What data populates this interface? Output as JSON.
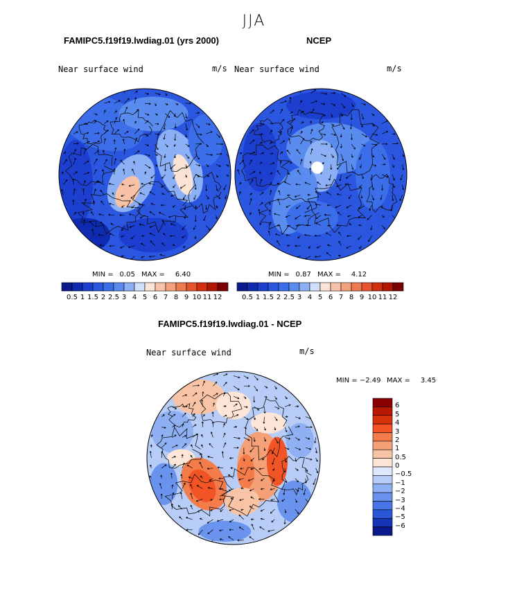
{
  "season": "JJA",
  "panels": [
    {
      "id": "model",
      "title": "FAMIPC5.f19f19.lwdiag.01 (yrs 2000)",
      "field": "Near surface wind",
      "units": "m/s",
      "min_label": "MIN =",
      "min_value": "0.05",
      "max_label": "MAX =",
      "max_value": "6.40"
    },
    {
      "id": "obs",
      "title": "NCEP",
      "field": "Near surface wind",
      "units": "m/s",
      "min_label": "MIN =",
      "min_value": "0.87",
      "max_label": "MAX =",
      "max_value": "4.12"
    },
    {
      "id": "diff",
      "title": "FAMIPC5.f19f19.lwdiag.01 - NCEP",
      "field": "Near surface wind",
      "units": "m/s",
      "min_label": "MIN =",
      "min_value": "−2.49",
      "max_label": "MAX =",
      "max_value": "3.45"
    }
  ],
  "colorbar_main": {
    "labels": [
      "0.5",
      "1",
      "1.5",
      "2",
      "2.5",
      "3",
      "4",
      "5",
      "6",
      "7",
      "8",
      "9",
      "10",
      "11",
      "12"
    ],
    "colors": [
      "#0a1a8c",
      "#0d2ab0",
      "#1c3fd0",
      "#2a56e0",
      "#3b6ee8",
      "#5a8cf0",
      "#8cb0f5",
      "#cfe0fa",
      "#fbe3d6",
      "#f8c2a6",
      "#f4a07c",
      "#ee7a52",
      "#e6532e",
      "#d22e10",
      "#b01600",
      "#7a0000"
    ]
  },
  "colorbar_diff": {
    "labels": [
      "6",
      "5",
      "4",
      "3",
      "2",
      "1",
      "0.5",
      "0",
      "−0.5",
      "−1",
      "−2",
      "−3",
      "−4",
      "−5",
      "−6"
    ],
    "colors": [
      "#8a0000",
      "#b81800",
      "#d63308",
      "#f25426",
      "#f47c4a",
      "#f6a078",
      "#f9c4a6",
      "#fde6d8",
      "#dce8fb",
      "#b7cdf7",
      "#8fb1f4",
      "#6a93ee",
      "#4774e6",
      "#2a56d8",
      "#1635b4",
      "#0a1a8c"
    ]
  }
}
